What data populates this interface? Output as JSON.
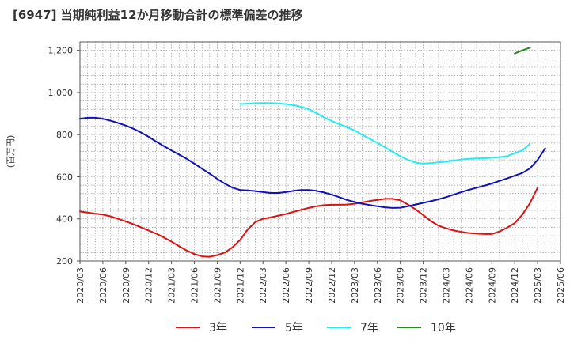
{
  "chart_data": {
    "type": "line",
    "title": "[6947]  当期純利益12か月移動合計の標準偏差の推移",
    "ylabel": "(百万円)",
    "xlabel": "",
    "ylim": [
      200,
      1240
    ],
    "yticks": [
      200,
      400,
      600,
      800,
      1000,
      1200
    ],
    "ytick_labels": [
      "200",
      "400",
      "600",
      "800",
      "1,000",
      "1,200"
    ],
    "xticks": [
      "2020/03",
      "2020/06",
      "2020/09",
      "2020/12",
      "2021/03",
      "2021/06",
      "2021/09",
      "2021/12",
      "2022/03",
      "2022/06",
      "2022/09",
      "2022/12",
      "2023/03",
      "2023/06",
      "2023/09",
      "2023/12",
      "2024/03",
      "2024/06",
      "2024/09",
      "2024/12",
      "2025/03",
      "2025/06"
    ],
    "grid": true,
    "legend_position": "bottom",
    "series": [
      {
        "name": "3年",
        "color": "#dd1111",
        "start": "2020/03",
        "values": [
          435,
          430,
          425,
          420,
          412,
          400,
          388,
          375,
          360,
          345,
          330,
          312,
          292,
          270,
          250,
          233,
          222,
          220,
          228,
          240,
          265,
          300,
          350,
          385,
          400,
          407,
          415,
          423,
          433,
          443,
          452,
          460,
          465,
          467,
          467,
          468,
          472,
          478,
          485,
          490,
          495,
          495,
          488,
          468,
          445,
          418,
          390,
          368,
          355,
          345,
          338,
          333,
          330,
          328,
          328,
          340,
          358,
          380,
          420,
          475,
          548
        ]
      },
      {
        "name": "5年",
        "color": "#1111bb",
        "start": "2020/03",
        "values": [
          875,
          880,
          880,
          875,
          866,
          855,
          843,
          828,
          810,
          790,
          767,
          745,
          725,
          705,
          685,
          662,
          638,
          615,
          590,
          567,
          548,
          537,
          535,
          532,
          527,
          523,
          523,
          527,
          533,
          537,
          537,
          533,
          525,
          515,
          503,
          490,
          480,
          472,
          466,
          460,
          455,
          452,
          453,
          460,
          468,
          476,
          484,
          493,
          503,
          515,
          527,
          538,
          548,
          557,
          568,
          580,
          592,
          605,
          618,
          640,
          680,
          735
        ]
      },
      {
        "name": "7年",
        "color": "#22eeee",
        "start": "2021/12",
        "values": [
          945,
          947,
          949,
          950,
          950,
          948,
          945,
          940,
          932,
          920,
          903,
          882,
          865,
          850,
          836,
          820,
          800,
          780,
          760,
          740,
          718,
          698,
          680,
          667,
          662,
          665,
          668,
          672,
          677,
          682,
          685,
          687,
          688,
          690,
          693,
          698,
          712,
          725,
          757
        ]
      },
      {
        "name": "10年",
        "color": "#228822",
        "start": "2024/12",
        "values": [
          1185,
          1200,
          1213
        ]
      }
    ]
  }
}
